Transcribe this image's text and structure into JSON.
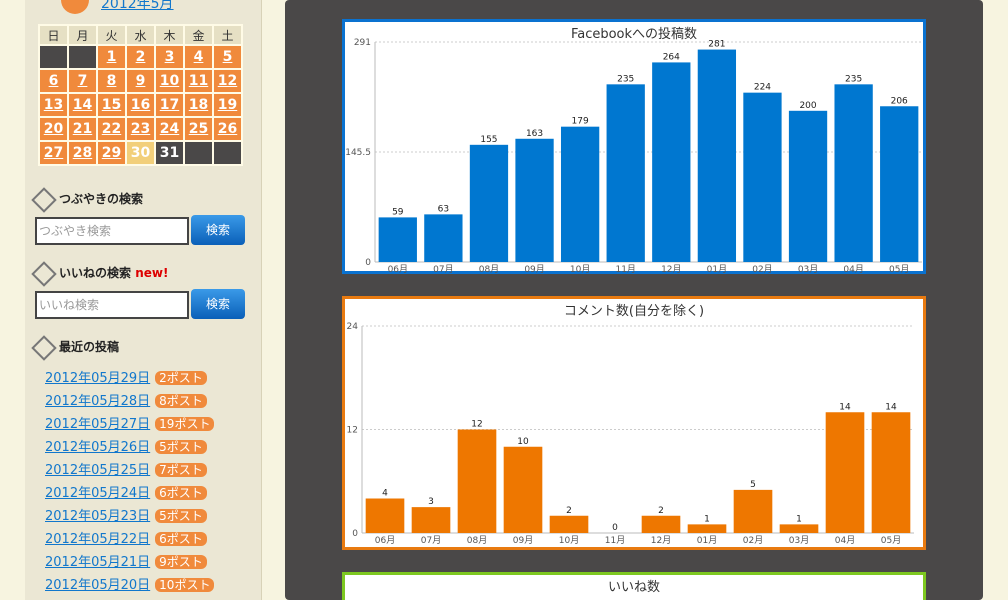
{
  "calendar": {
    "month": "2012年5月",
    "weekdays": [
      "日",
      "月",
      "火",
      "水",
      "木",
      "金",
      "土"
    ],
    "weeks": [
      [
        null,
        null,
        1,
        2,
        3,
        4,
        5
      ],
      [
        6,
        7,
        8,
        9,
        10,
        11,
        12
      ],
      [
        13,
        14,
        15,
        16,
        17,
        18,
        19
      ],
      [
        20,
        21,
        22,
        23,
        24,
        25,
        26
      ],
      [
        27,
        28,
        29,
        30,
        31,
        null,
        null
      ]
    ]
  },
  "tweet_search": {
    "heading": "つぶやきの検索",
    "placeholder": "つぶやき検索",
    "button": "検索"
  },
  "like_search": {
    "heading": "いいねの検索",
    "badge": "new!",
    "placeholder": "いいね検索",
    "button": "検索"
  },
  "recent_posts": {
    "heading": "最近の投稿",
    "items": [
      {
        "date": "2012年05月29日",
        "count": "2ポスト"
      },
      {
        "date": "2012年05月28日",
        "count": "8ポスト"
      },
      {
        "date": "2012年05月27日",
        "count": "19ポスト"
      },
      {
        "date": "2012年05月26日",
        "count": "5ポスト"
      },
      {
        "date": "2012年05月25日",
        "count": "7ポスト"
      },
      {
        "date": "2012年05月24日",
        "count": "6ポスト"
      },
      {
        "date": "2012年05月23日",
        "count": "5ポスト"
      },
      {
        "date": "2012年05月22日",
        "count": "6ポスト"
      },
      {
        "date": "2012年05月21日",
        "count": "9ポスト"
      },
      {
        "date": "2012年05月20日",
        "count": "10ポスト"
      }
    ]
  },
  "chart_data": [
    {
      "type": "bar",
      "title": "Facebookへの投稿数",
      "color": "#0077d0",
      "categories": [
        "06月",
        "07月",
        "08月",
        "09月",
        "10月",
        "11月",
        "12月",
        "01月",
        "02月",
        "03月",
        "04月",
        "05月"
      ],
      "values": [
        59,
        63,
        155,
        163,
        179,
        235,
        264,
        281,
        224,
        200,
        235,
        206
      ],
      "ylim": [
        0,
        291
      ],
      "yticks": [
        0,
        145.5,
        291
      ],
      "grid": true
    },
    {
      "type": "bar",
      "title": "コメント数(自分を除く)",
      "color": "#ee7700",
      "categories": [
        "06月",
        "07月",
        "08月",
        "09月",
        "10月",
        "11月",
        "12月",
        "01月",
        "02月",
        "03月",
        "04月",
        "05月"
      ],
      "values": [
        4,
        3,
        12,
        10,
        2,
        0,
        2,
        1,
        5,
        1,
        14,
        14
      ],
      "ylim": [
        0,
        24
      ],
      "yticks": [
        0,
        12,
        24
      ],
      "grid": true
    },
    {
      "type": "bar",
      "title": "いいね数"
    }
  ]
}
